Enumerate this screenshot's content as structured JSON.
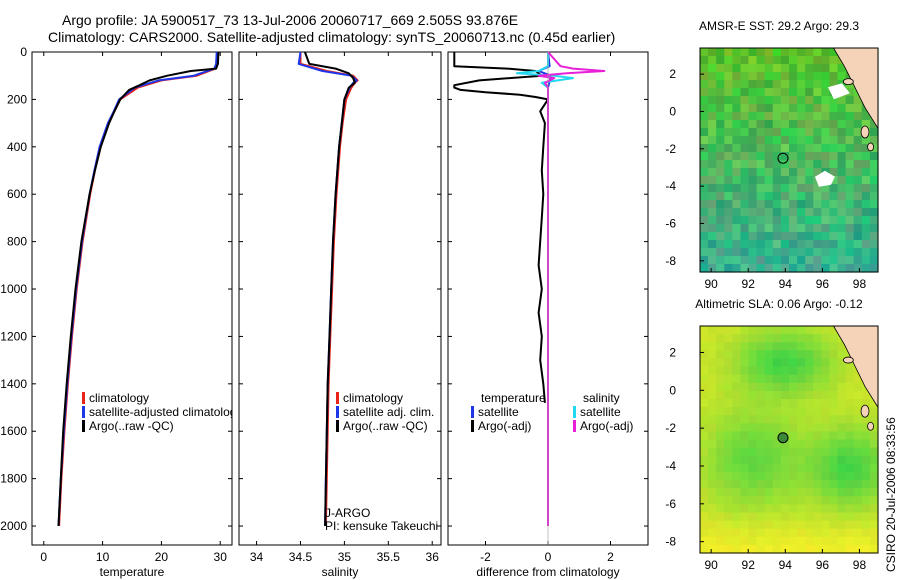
{
  "header": {
    "line1": "Argo profile: JA 5900517_73 13-Jul-2006 20060717_669 2.505S 93.876E",
    "line2": "Climatology: CARS2000. Satellite-adjusted climatology: synTS_20060713.nc (0.45d earlier)"
  },
  "colors": {
    "climatology": "#e8231a",
    "satellite": "#1f35e8",
    "argo": "#000000",
    "sat_sal": "#22d8f0",
    "argo_sal": "#e820d8"
  },
  "chart_data": [
    {
      "type": "line",
      "id": "temperature",
      "xlabel": "temperature",
      "ylabel": "",
      "xlim": [
        -2,
        32
      ],
      "ylim": [
        2080,
        0
      ],
      "xticks": [
        0,
        10,
        20,
        30
      ],
      "yticks": [
        0,
        200,
        400,
        600,
        800,
        1000,
        1200,
        1400,
        1600,
        1800,
        2000
      ],
      "series": [
        {
          "name": "climatology",
          "depth": [
            0,
            50,
            70,
            100,
            120,
            150,
            200,
            250,
            300,
            400,
            500,
            600,
            800,
            1000,
            1200,
            1400,
            1600,
            1800,
            2000
          ],
          "values": [
            29.6,
            29.5,
            29.2,
            26,
            20,
            16,
            13,
            12,
            11,
            9.6,
            8.7,
            7.9,
            6.6,
            5.6,
            4.8,
            4.1,
            3.5,
            3,
            2.6
          ]
        },
        {
          "name": "satellite-adjusted climatology",
          "depth": [
            0,
            50,
            70,
            100,
            120,
            150,
            200,
            250,
            300,
            400,
            500,
            600,
            800,
            1000,
            1200,
            1400,
            1600,
            1800,
            2000
          ],
          "values": [
            29.4,
            29.3,
            29,
            25.5,
            19.5,
            15.5,
            12.8,
            11.9,
            10.9,
            9.5,
            8.6,
            7.8,
            6.5,
            5.5,
            4.7,
            4,
            3.4,
            2.9,
            2.5
          ]
        },
        {
          "name": "Argo(..raw -QC)",
          "depth": [
            0,
            50,
            70,
            80,
            100,
            120,
            140,
            160,
            200,
            250,
            300,
            400,
            500,
            600,
            800,
            1000,
            1200,
            1400,
            1600,
            1800,
            2000
          ],
          "values": [
            29.7,
            29.6,
            29.3,
            25,
            21,
            18,
            16.3,
            14.5,
            13,
            12,
            11.1,
            9.7,
            8.7,
            7.8,
            6.4,
            5.4,
            4.6,
            3.9,
            3.3,
            2.9,
            2.5
          ]
        }
      ],
      "legend": [
        "climatology",
        "satellite-adjusted climatology",
        "Argo(..raw -QC)"
      ]
    },
    {
      "type": "line",
      "id": "salinity",
      "xlabel": "salinity",
      "ylabel": "",
      "xlim": [
        33.8,
        36.1
      ],
      "ylim": [
        2080,
        0
      ],
      "xticks": [
        34,
        34.5,
        35,
        35.5,
        36
      ],
      "series": [
        {
          "name": "climatology",
          "depth": [
            0,
            50,
            80,
            100,
            120,
            130,
            150,
            200,
            300,
            400,
            600,
            800,
            1000,
            1200,
            1400,
            1600,
            1800,
            2000
          ],
          "values": [
            34.5,
            34.5,
            34.8,
            35.1,
            35.15,
            35.12,
            35.08,
            35.02,
            34.98,
            34.95,
            34.91,
            34.88,
            34.86,
            34.84,
            34.82,
            34.81,
            34.8,
            34.79
          ]
        },
        {
          "name": "satellite adj. clim.",
          "depth": [
            0,
            50,
            80,
            100,
            120,
            130,
            150,
            200,
            300,
            400,
            600,
            800,
            1000,
            1200,
            1400,
            1600,
            1800,
            2000
          ],
          "values": [
            34.5,
            34.48,
            34.75,
            35.08,
            35.14,
            35.1,
            35.06,
            35.0,
            34.97,
            34.94,
            34.9,
            34.87,
            34.85,
            34.83,
            34.81,
            34.8,
            34.79,
            34.78
          ]
        },
        {
          "name": "Argo(..raw -QC)",
          "depth": [
            0,
            50,
            70,
            90,
            110,
            130,
            150,
            200,
            300,
            400,
            600,
            800,
            1000,
            1200,
            1400,
            1600,
            1800,
            2000
          ],
          "values": [
            34.55,
            34.6,
            34.9,
            35.05,
            35.1,
            35.12,
            35.05,
            35.0,
            34.97,
            34.94,
            34.9,
            34.87,
            34.85,
            34.83,
            34.81,
            34.8,
            34.79,
            34.78
          ]
        }
      ],
      "legend": [
        "climatology",
        "satellite adj. clim.",
        "Argo(..raw -QC)"
      ],
      "credit": [
        "J-ARGO",
        "PI: kensuke Takeuchi"
      ]
    },
    {
      "type": "line",
      "id": "difference",
      "xlabel": "difference from climatology",
      "ylabel": "",
      "xlim": [
        -3.2,
        3.2
      ],
      "ylim": [
        2080,
        0
      ],
      "xticks": [
        -2,
        0,
        2
      ],
      "series": [
        {
          "name": "temperature satellite",
          "depth": [
            0,
            60,
            80,
            100,
            150,
            200,
            400,
            800,
            1200,
            1600,
            2000
          ],
          "values": [
            0,
            0.05,
            -0.3,
            0.1,
            0,
            0,
            0,
            0,
            0,
            0,
            0
          ]
        },
        {
          "name": "temperature Argo(-adj)",
          "depth": [
            0,
            60,
            70,
            80,
            100,
            120,
            140,
            150,
            160,
            170,
            180,
            190,
            200,
            250,
            300,
            400,
            500,
            600,
            700,
            800,
            900,
            1000,
            1100,
            1200,
            1300,
            1400,
            1480
          ],
          "values": [
            -3,
            -3,
            -1.3,
            -0.4,
            -0.2,
            -2.2,
            -3,
            -3,
            -2.8,
            -2,
            -0.9,
            -0.4,
            0,
            -0.25,
            -0.1,
            -0.15,
            -0.2,
            -0.15,
            -0.2,
            -0.25,
            -0.3,
            -0.2,
            -0.3,
            -0.2,
            -0.25,
            -0.15,
            -0.1
          ]
        },
        {
          "name": "salinity satellite",
          "depth": [
            0,
            60,
            80,
            90,
            100,
            110,
            130,
            150,
            200,
            400,
            800,
            1200,
            1600,
            2000
          ],
          "values": [
            0,
            0,
            -0.3,
            -1.0,
            0.2,
            0.8,
            -0.2,
            0,
            0,
            0,
            0,
            0,
            0,
            0
          ]
        },
        {
          "name": "salinity Argo(-adj)",
          "depth": [
            0,
            60,
            70,
            80,
            90,
            100,
            110,
            130,
            150,
            200,
            400,
            800,
            1200,
            1600,
            2000
          ],
          "values": [
            0,
            0.4,
            0.8,
            1.8,
            0.6,
            -0.3,
            0.2,
            -0.1,
            0,
            0,
            0,
            0,
            0,
            0,
            0
          ]
        }
      ],
      "legend": {
        "temperature": "temperature",
        "salinity": "salinity",
        "satellite": "satellite",
        "argo": "Argo(-adj)"
      }
    },
    {
      "type": "heatmap",
      "id": "sst",
      "title": "AMSR-E SST: 29.2 Argo: 29.3",
      "xlim": [
        89.4,
        99
      ],
      "ylim": [
        -8.6,
        3.4
      ],
      "xticks": [
        90,
        92,
        94,
        96,
        98
      ],
      "yticks": [
        -8,
        -6,
        -4,
        -2,
        0,
        2
      ],
      "marker": {
        "lon": 93.876,
        "lat": -2.505
      }
    },
    {
      "type": "heatmap",
      "id": "sla",
      "title": "Altimetric SLA: 0.06 Argo: -0.12",
      "xlim": [
        89.4,
        99
      ],
      "ylim": [
        -8.6,
        3.4
      ],
      "xticks": [
        90,
        92,
        94,
        96,
        98
      ],
      "yticks": [
        -8,
        -6,
        -4,
        -2,
        0,
        2
      ],
      "marker": {
        "lon": 93.876,
        "lat": -2.505
      }
    }
  ],
  "legends": {
    "temp": [
      "climatology",
      "satellite-adjusted climatology",
      "Argo(..raw -QC)"
    ],
    "sal": [
      "climatology",
      "satellite adj. clim.",
      "Argo(..raw -QC)"
    ],
    "diff_left": [
      "temperature",
      "satellite",
      "Argo(-adj)"
    ],
    "diff_right": [
      "salinity",
      "satellite",
      "Argo(-adj)"
    ]
  },
  "credit": {
    "line1": "J-ARGO",
    "line2": "PI: kensuke Takeuchi"
  },
  "stamp": "CSIRO 20-Jul-2006 08:33:56"
}
